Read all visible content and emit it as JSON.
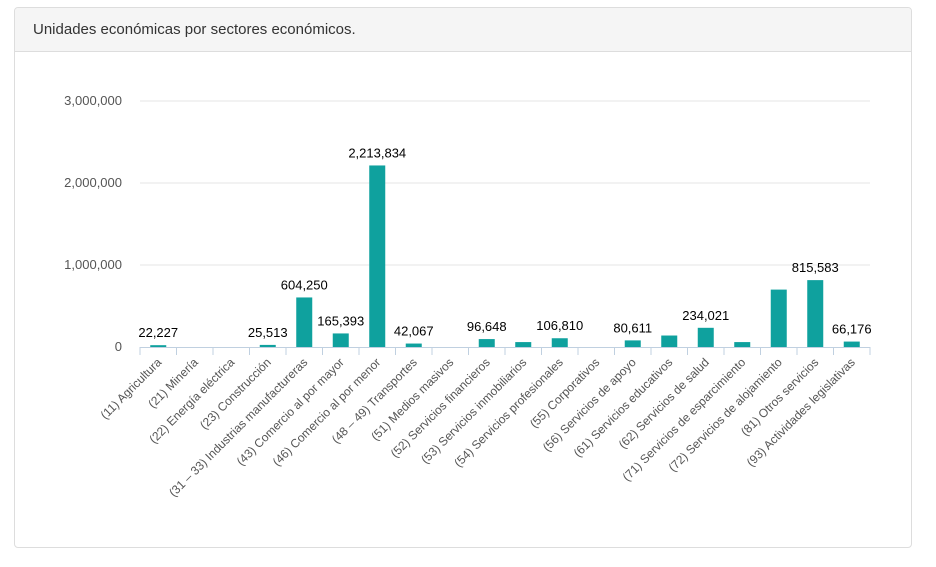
{
  "panel": {
    "title": "Unidades económicas por sectores económicos."
  },
  "chart_data": {
    "type": "bar",
    "title": "Unidades económicas por sectores económicos.",
    "xlabel": "",
    "ylabel": "",
    "ylim": [
      0,
      3000000
    ],
    "yticks": [
      {
        "value": 0,
        "label": "0"
      },
      {
        "value": 1000000,
        "label": "1,000,000"
      },
      {
        "value": 2000000,
        "label": "2,000,000"
      },
      {
        "value": 3000000,
        "label": "3,000,000"
      }
    ],
    "grid": true,
    "categories": [
      "(11) Agricultura",
      "(21) Minería",
      "(22) Energía eléctrica",
      "(23) Construcción",
      "(31 – 33) Industrias manufactureras",
      "(43) Comercio al por mayor",
      "(46) Comercio al por menor",
      "(48 – 49) Transportes",
      "(51) Medios masivos",
      "(52) Servicios financieros",
      "(53) Servicios inmobiliarios",
      "(54) Servicios profesionales",
      "(55) Corporativos",
      "(56) Servicios de apoyo",
      "(61) Servicios educativos",
      "(62) Servicios de salud",
      "(71) Servicios de esparcimiento",
      "(72) Servicios de alojamiento",
      "(81) Otros servicios",
      "(93) Actividades legislativas"
    ],
    "values": [
      22227,
      0,
      0,
      25513,
      604250,
      165393,
      2213834,
      42067,
      0,
      96648,
      60000,
      106810,
      0,
      80611,
      140000,
      234021,
      60000,
      700000,
      815583,
      66176
    ],
    "data_labels": [
      "22,227",
      "",
      "",
      "25,513",
      "604,250",
      "165,393",
      "2,213,834",
      "42,067",
      "",
      "96,648",
      "",
      "106,810",
      "",
      "80,611",
      "",
      "234,021",
      "",
      "",
      "815,583",
      "66,176"
    ],
    "colors": {
      "bar": "#0fa19e",
      "grid": "#e6e6e6",
      "axis": "#c0d0e0",
      "tick_text": "#555555",
      "label_text": "#000000"
    }
  }
}
